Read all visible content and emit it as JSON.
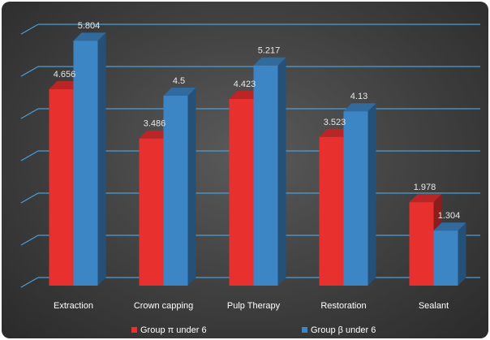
{
  "chart_data": {
    "type": "bar",
    "title": "",
    "xlabel": "",
    "ylabel": "",
    "categories": [
      "Extraction",
      "Crown capping",
      "Pulp Therapy",
      "Restoration",
      "Sealant"
    ],
    "series": [
      {
        "name": "Group π under 6",
        "values": [
          4.656,
          3.486,
          4.423,
          3.523,
          1.978
        ],
        "labels": [
          "4.656",
          "3.486",
          "4.423",
          "3.523",
          "1.978"
        ],
        "color": "#e8302e"
      },
      {
        "name": "Group β under 6",
        "values": [
          5.804,
          4.5,
          5.217,
          4.13,
          1.304
        ],
        "labels": [
          "5.804",
          "4.5",
          "5.217",
          "4.13",
          "1.304"
        ],
        "color": "#3d86c6"
      }
    ],
    "ylim": [
      0,
      6
    ],
    "grid": true,
    "legend": "bottom",
    "background": "#3a3a3a",
    "gridline_color": "#4a9fd8"
  }
}
